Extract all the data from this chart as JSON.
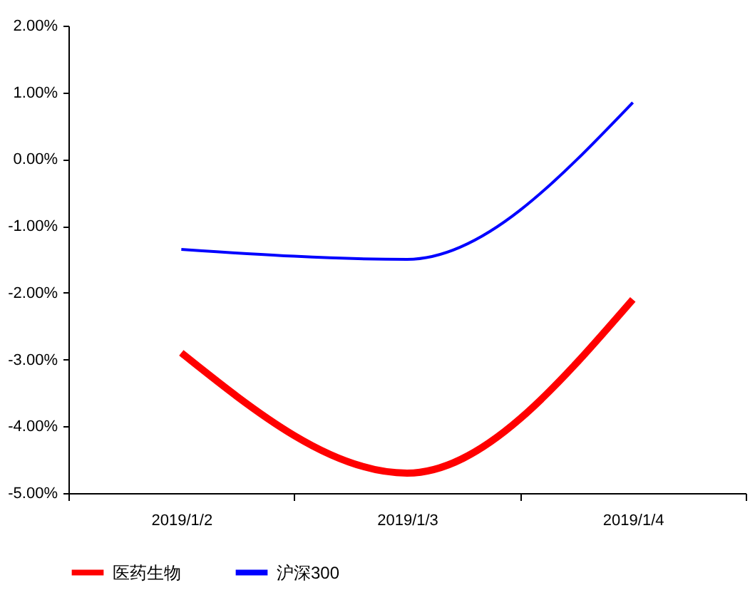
{
  "chart_data": {
    "type": "line",
    "categories": [
      "2019/1/2",
      "2019/1/3",
      "2019/1/4"
    ],
    "series": [
      {
        "name": "医药生物",
        "color": "#ff0000",
        "values": [
          -2.9,
          -4.7,
          -2.1
        ]
      },
      {
        "name": "沪深300",
        "color": "#0000ff",
        "values": [
          -1.35,
          -1.5,
          0.85
        ]
      }
    ],
    "ylim": [
      -5,
      2
    ],
    "yticks": [
      {
        "value": 2,
        "label": "2.00%"
      },
      {
        "value": 1,
        "label": "1.00%"
      },
      {
        "value": 0,
        "label": "0.00%"
      },
      {
        "value": -1,
        "label": "-1.00%"
      },
      {
        "value": -2,
        "label": "-2.00%"
      },
      {
        "value": -3,
        "label": "-3.00%"
      },
      {
        "value": -4,
        "label": "-4.00%"
      },
      {
        "value": -5,
        "label": "-5.00%"
      }
    ],
    "grid": false,
    "legend": "bottom",
    "marker": "none",
    "line_style": "solid"
  }
}
